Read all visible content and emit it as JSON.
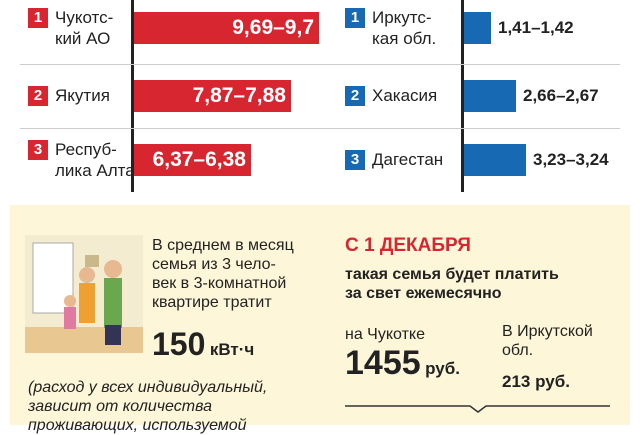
{
  "left": {
    "rows": [
      {
        "rank": "1",
        "name": [
          "Чукотс-",
          "кий АО"
        ],
        "value": "9,69–9,7"
      },
      {
        "rank": "2",
        "name": [
          "Якутия"
        ],
        "value": "7,87–7,88"
      },
      {
        "rank": "3",
        "name": [
          "Респуб-",
          "лика Алтай"
        ],
        "value": "6,37–6,38"
      }
    ]
  },
  "right": {
    "rows": [
      {
        "rank": "1",
        "name": [
          "Иркутс-",
          "кая обл."
        ],
        "value": "1,41–1,42"
      },
      {
        "rank": "2",
        "name": [
          "Хакасия"
        ],
        "value": "2,66–2,67"
      },
      {
        "rank": "3",
        "name": [
          "Дагестан"
        ],
        "value": "3,23–3,24"
      }
    ]
  },
  "usage": {
    "text": [
      "В среднем в месяц",
      "семья из 3 чело-",
      "век в 3-комнатной",
      "квартире тратит"
    ],
    "amount": "150",
    "unit": "кВт·ч"
  },
  "note": [
    "(расход у всех индивидуальный,",
    "зависит от количества",
    "проживающих, используемой"
  ],
  "december": {
    "title": "С 1 ДЕКАБРЯ",
    "subtitle": [
      "такая семья будет платить",
      "за свет ежемесячно"
    ],
    "a": {
      "place": [
        "на Чукотке"
      ],
      "amount": "1455",
      "unit": "руб."
    },
    "b": {
      "place": [
        "В Иркутской",
        "обл."
      ],
      "amount": "213",
      "unit": "руб."
    }
  }
}
